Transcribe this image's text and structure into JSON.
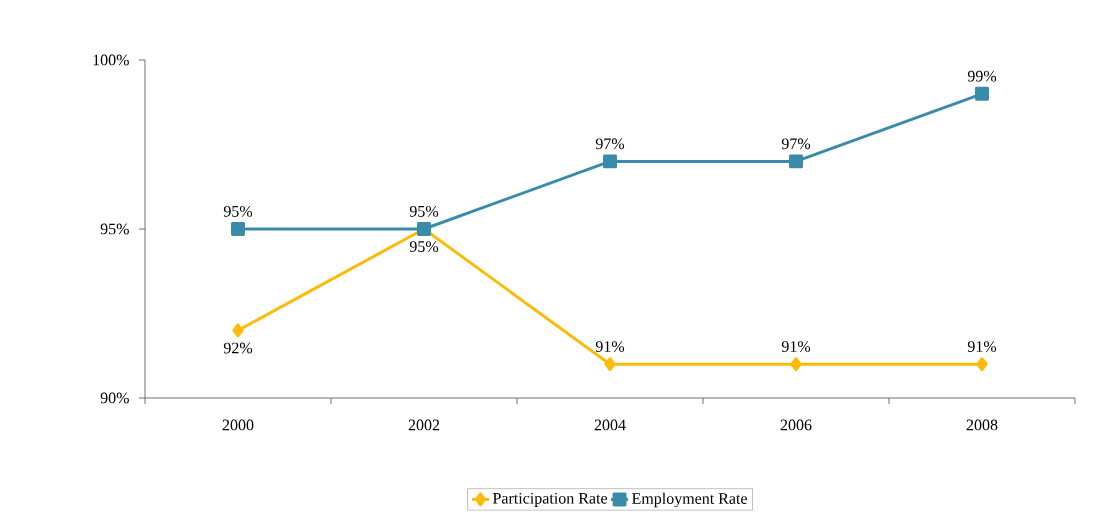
{
  "chart_data": {
    "type": "line",
    "categories": [
      "2000",
      "2002",
      "2004",
      "2006",
      "2008"
    ],
    "series": [
      {
        "name": "Participation Rate",
        "color": "#fbbc09",
        "values": [
          92,
          95,
          91,
          91,
          91
        ],
        "value_labels": [
          "92%",
          "95%",
          "91%",
          "91%",
          "91%"
        ]
      },
      {
        "name": "Employment Rate",
        "color": "#3a8baa",
        "values": [
          95,
          95,
          97,
          97,
          99
        ],
        "value_labels": [
          "95%",
          "95%",
          "97%",
          "97%",
          "99%"
        ]
      }
    ],
    "ylim": [
      90,
      100
    ],
    "yticks": [
      {
        "value": 90,
        "label": "90%"
      },
      {
        "value": 95,
        "label": "95%"
      },
      {
        "value": 100,
        "label": "100%"
      }
    ],
    "legend": "bottom",
    "grid": false,
    "marker": [
      "diamond",
      "square"
    ],
    "line_style": "solid"
  }
}
